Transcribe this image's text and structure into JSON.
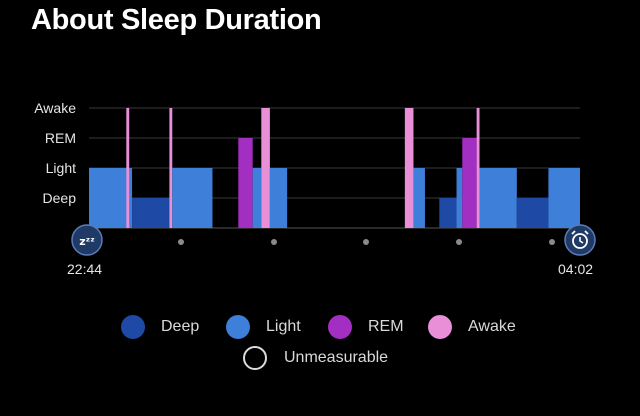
{
  "title": "About Sleep Duration",
  "colors": {
    "deep": "#1e4aa6",
    "light": "#3d7fd9",
    "rem": "#a22ec2",
    "awake": "#e88fd8",
    "unmeasurable": "#000000",
    "grid": "#3a3a3a",
    "axis": "#555555"
  },
  "chart_data": {
    "type": "timeline",
    "stages": [
      "Deep",
      "Light",
      "REM",
      "Awake"
    ],
    "ytick_labels": [
      "Awake",
      "REM",
      "Light",
      "Deep"
    ],
    "start_label": "22:44",
    "end_label": "04:02",
    "start_icon": "sleep-zzz-icon",
    "end_icon": "alarm-clock-icon",
    "duration_minutes": 318,
    "segments": [
      {
        "stage": "Light",
        "start": 0,
        "end": 15
      },
      {
        "stage": "Awake",
        "start": 13,
        "end": 14
      },
      {
        "stage": "Deep",
        "start": 15,
        "end": 28
      },
      {
        "stage": "Awake",
        "start": 28,
        "end": 29
      },
      {
        "stage": "Light",
        "start": 29,
        "end": 43
      },
      {
        "stage": "REM",
        "start": 52,
        "end": 57
      },
      {
        "stage": "Light",
        "start": 57,
        "end": 60
      },
      {
        "stage": "Awake",
        "start": 60,
        "end": 63
      },
      {
        "stage": "Light",
        "start": 63,
        "end": 69
      },
      {
        "stage": "Awake",
        "start": 110,
        "end": 113
      },
      {
        "stage": "Light",
        "start": 113,
        "end": 117
      },
      {
        "stage": "Deep",
        "start": 122,
        "end": 128
      },
      {
        "stage": "Light",
        "start": 128,
        "end": 130
      },
      {
        "stage": "REM",
        "start": 130,
        "end": 135
      },
      {
        "stage": "Awake",
        "start": 135,
        "end": 136
      },
      {
        "stage": "Light",
        "start": 136,
        "end": 149
      },
      {
        "stage": "Deep",
        "start": 149,
        "end": 160
      },
      {
        "stage": "Light",
        "start": 160,
        "end": 171
      }
    ]
  },
  "legend": {
    "items": [
      {
        "label": "Deep",
        "color": "#1e4aa6",
        "outlined": false
      },
      {
        "label": "Light",
        "color": "#3d7fd9",
        "outlined": false
      },
      {
        "label": "REM",
        "color": "#a22ec2",
        "outlined": false
      },
      {
        "label": "Awake",
        "color": "#e88fd8",
        "outlined": false
      }
    ],
    "unmeasurable": {
      "label": "Unmeasurable",
      "outlined": true
    }
  }
}
